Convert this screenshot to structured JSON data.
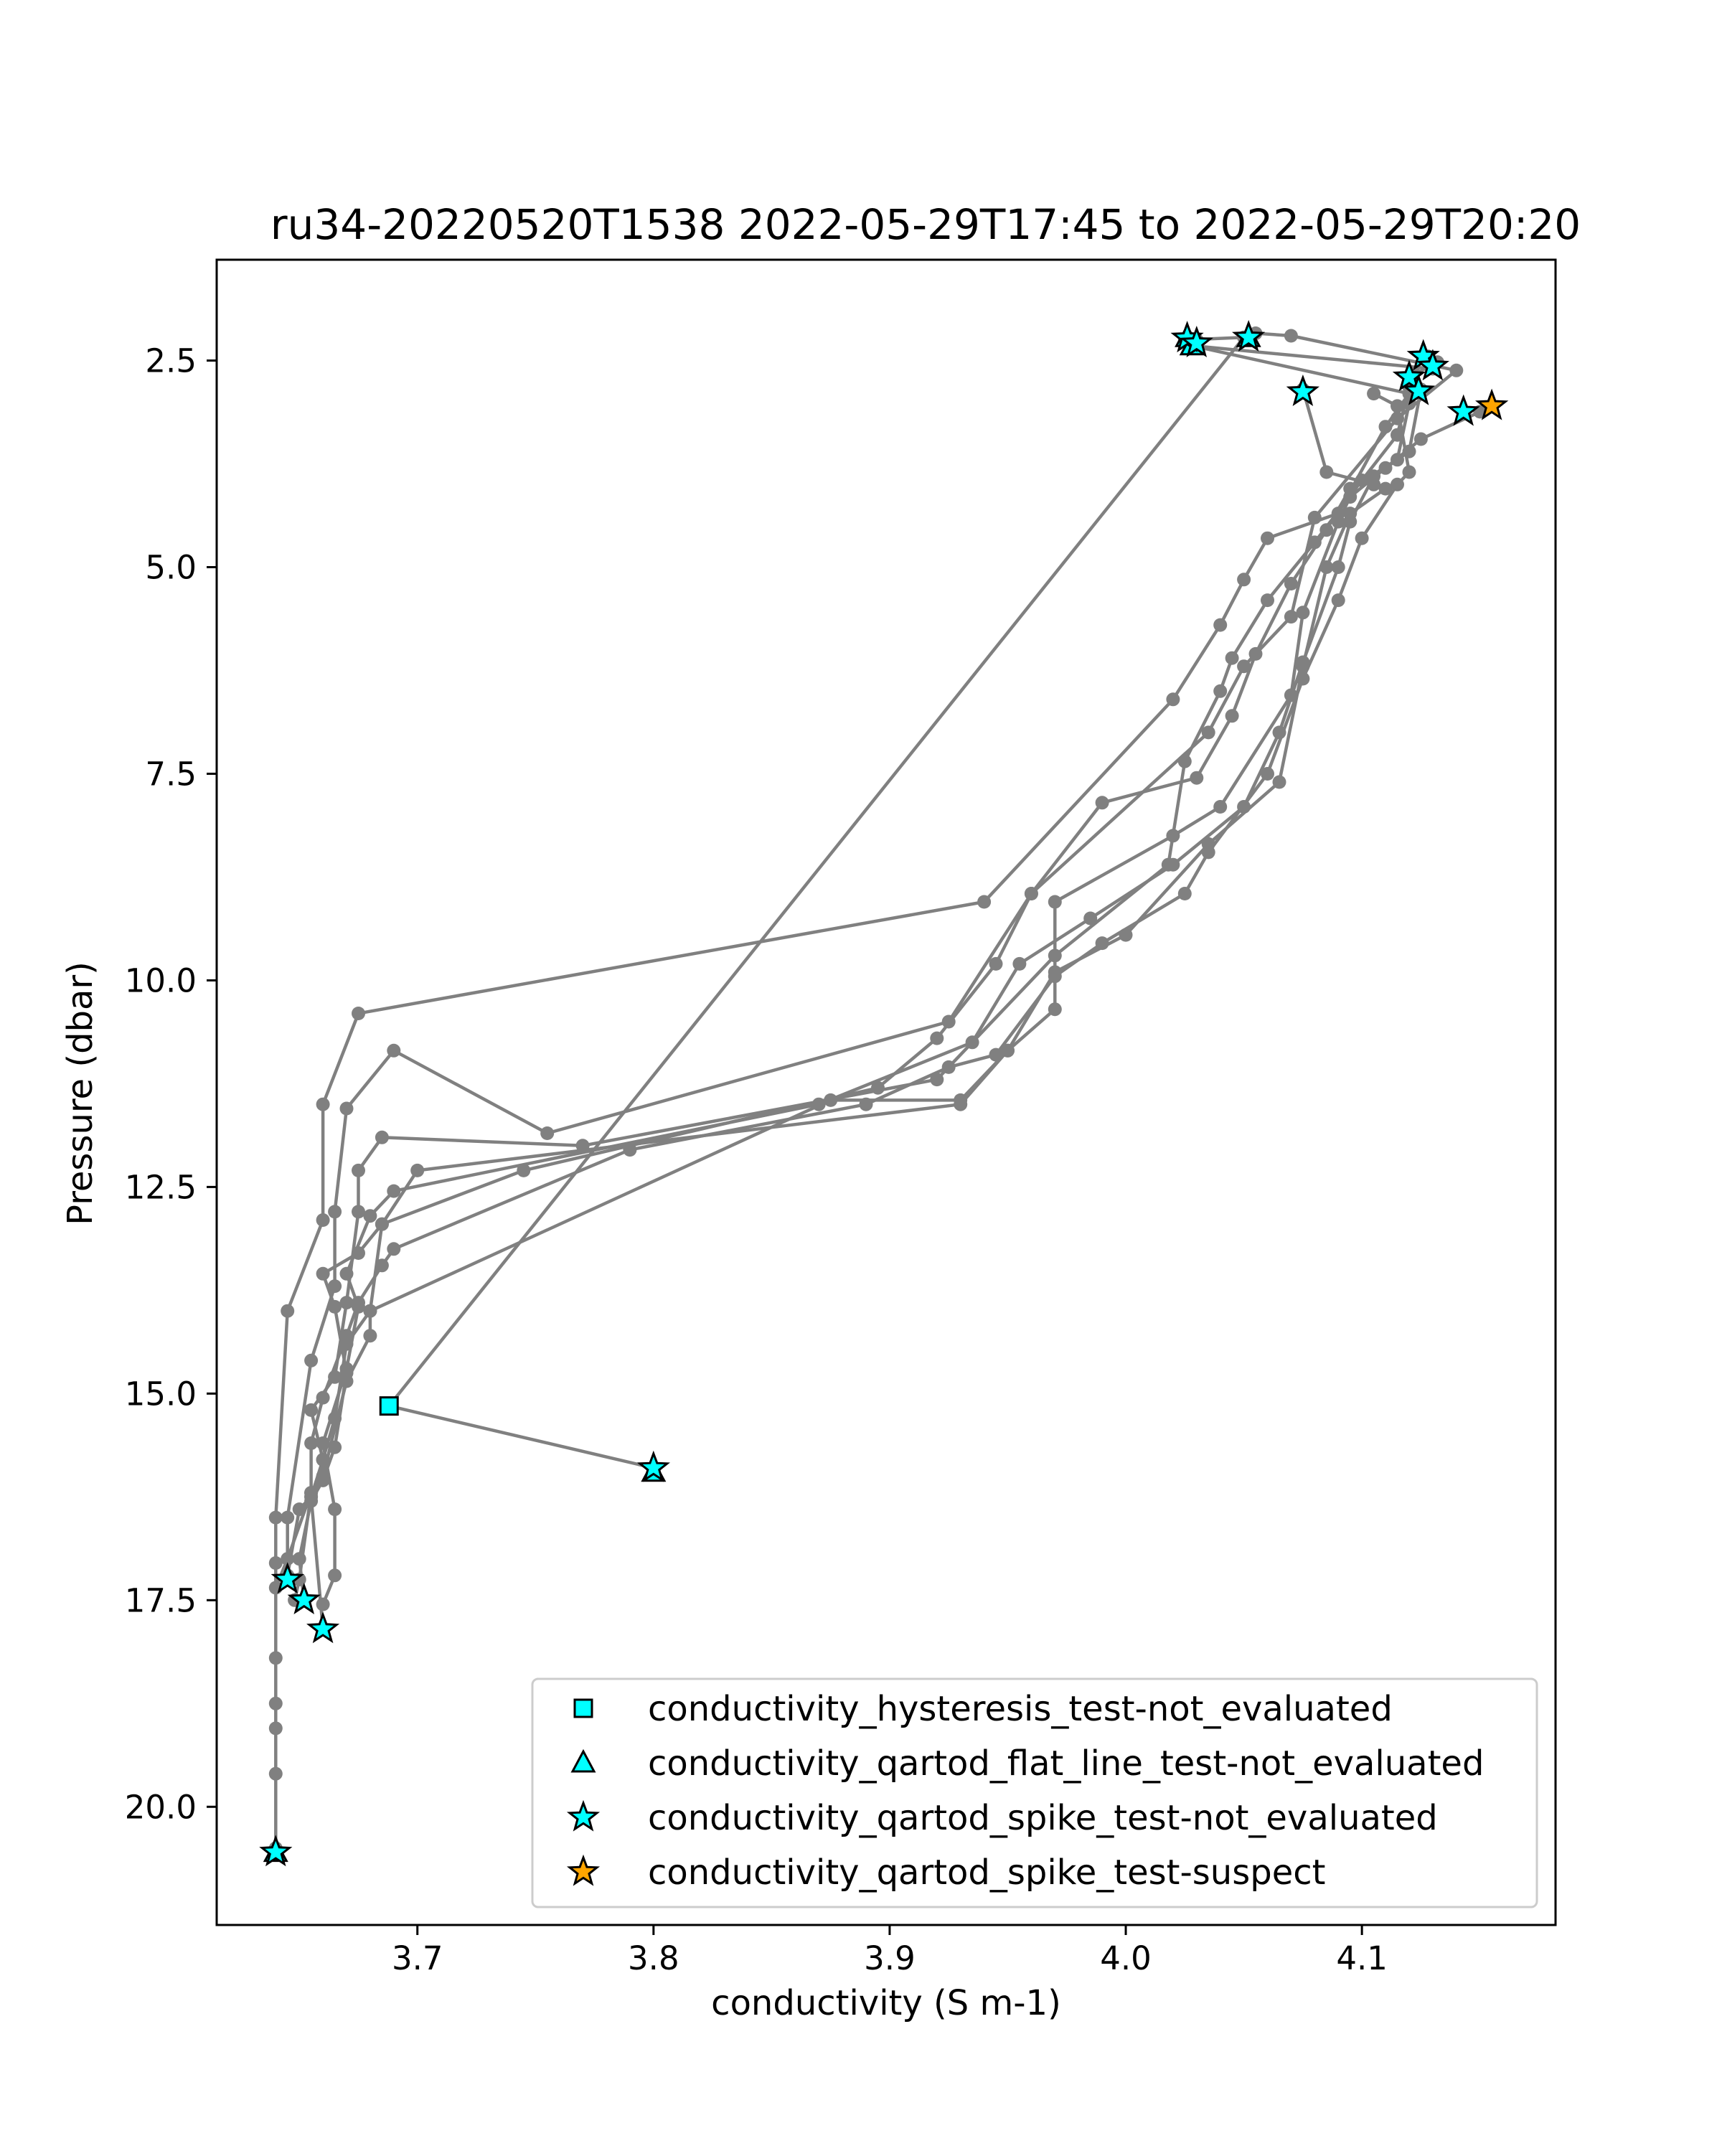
{
  "chart_data": {
    "type": "scatter",
    "title": "ru34-20220520T1538 2022-05-29T17:45 to 2022-05-29T20:20",
    "xlabel": "conductivity (S m-1)",
    "ylabel": "Pressure (dbar)",
    "xlim": [
      3.615,
      4.182
    ],
    "ylim": [
      21.43,
      1.28
    ],
    "y_inverted": true,
    "grid": false,
    "legend_position": "lower-right",
    "xticks": [
      {
        "value": 3.7,
        "label": "3.7"
      },
      {
        "value": 3.8,
        "label": "3.8"
      },
      {
        "value": 3.9,
        "label": "3.9"
      },
      {
        "value": 4.0,
        "label": "4.0"
      },
      {
        "value": 4.1,
        "label": "4.1"
      }
    ],
    "yticks": [
      {
        "value": 2.5,
        "label": "2.5"
      },
      {
        "value": 5.0,
        "label": "5.0"
      },
      {
        "value": 7.5,
        "label": "7.5"
      },
      {
        "value": 10.0,
        "label": "10.0"
      },
      {
        "value": 12.5,
        "label": "12.5"
      },
      {
        "value": 15.0,
        "label": "15.0"
      },
      {
        "value": 17.5,
        "label": "17.5"
      },
      {
        "value": 20.0,
        "label": "20.0"
      }
    ],
    "profile_line_color": "#808080",
    "profiles": [
      [
        [
          4.03,
          2.25
        ],
        [
          4.028,
          2.32
        ],
        [
          4.12,
          2.9
        ],
        [
          4.11,
          3.3
        ],
        [
          4.09,
          4.35
        ],
        [
          4.06,
          4.65
        ],
        [
          4.05,
          5.15
        ],
        [
          4.04,
          5.7
        ],
        [
          4.02,
          6.6
        ],
        [
          3.94,
          9.05
        ],
        [
          3.675,
          10.4
        ],
        [
          3.66,
          11.5
        ],
        [
          3.66,
          12.9
        ],
        [
          3.645,
          14.0
        ],
        [
          3.64,
          16.5
        ],
        [
          3.64,
          17.05
        ],
        [
          3.64,
          18.2
        ],
        [
          3.64,
          18.75
        ],
        [
          3.64,
          19.05
        ],
        [
          3.64,
          19.6
        ],
        [
          3.64,
          20.5
        ]
      ],
      [
        [
          4.055,
          2.17
        ],
        [
          4.07,
          2.2
        ],
        [
          4.14,
          2.62
        ],
        [
          4.115,
          3.2
        ],
        [
          4.08,
          4.4
        ],
        [
          4.07,
          5.6
        ],
        [
          4.05,
          6.2
        ],
        [
          4.035,
          7.0
        ],
        [
          3.96,
          8.95
        ],
        [
          3.925,
          10.5
        ],
        [
          3.755,
          11.85
        ],
        [
          3.69,
          10.85
        ],
        [
          3.67,
          11.55
        ],
        [
          3.665,
          12.8
        ],
        [
          3.665,
          13.7
        ],
        [
          3.655,
          14.6
        ],
        [
          3.645,
          16.5
        ],
        [
          3.645,
          17.25
        ]
      ],
      [
        [
          4.122,
          2.65
        ],
        [
          4.12,
          2.82
        ],
        [
          4.115,
          3.4
        ],
        [
          4.1,
          3.95
        ],
        [
          4.08,
          4.7
        ],
        [
          4.06,
          5.4
        ],
        [
          4.045,
          6.1
        ],
        [
          4.04,
          6.5
        ],
        [
          4.025,
          7.35
        ],
        [
          4.018,
          8.6
        ],
        [
          3.97,
          9.7
        ],
        [
          3.92,
          11.2
        ],
        [
          3.77,
          12.0
        ],
        [
          3.685,
          11.9
        ],
        [
          3.675,
          12.3
        ],
        [
          3.675,
          12.8
        ],
        [
          3.67,
          13.9
        ],
        [
          3.665,
          14.8
        ],
        [
          3.655,
          15.2
        ],
        [
          3.66,
          15.8
        ],
        [
          3.66,
          16.05
        ],
        [
          3.655,
          16.3
        ],
        [
          3.65,
          17.0
        ],
        [
          3.652,
          17.5
        ]
      ],
      [
        [
          4.128,
          2.45
        ],
        [
          4.132,
          2.52
        ],
        [
          4.12,
          2.7
        ],
        [
          4.12,
          3.02
        ],
        [
          4.115,
          3.7
        ],
        [
          4.095,
          4.05
        ],
        [
          4.085,
          4.55
        ],
        [
          4.07,
          5.2
        ],
        [
          4.055,
          6.05
        ],
        [
          4.045,
          6.8
        ],
        [
          4.03,
          7.55
        ],
        [
          3.99,
          7.85
        ],
        [
          3.96,
          8.95
        ],
        [
          3.945,
          9.8
        ],
        [
          3.92,
          10.7
        ],
        [
          3.895,
          11.3
        ],
        [
          3.745,
          12.3
        ],
        [
          3.685,
          12.95
        ],
        [
          3.675,
          13.3
        ],
        [
          3.66,
          13.55
        ],
        [
          3.665,
          13.95
        ],
        [
          3.67,
          14.75
        ],
        [
          3.665,
          15.65
        ],
        [
          3.66,
          16.05
        ],
        [
          3.655,
          16.25
        ],
        [
          3.66,
          17.85
        ]
      ],
      [
        [
          4.125,
          2.85
        ],
        [
          4.12,
          3.6
        ],
        [
          4.105,
          3.9
        ],
        [
          4.095,
          4.45
        ],
        [
          4.09,
          5.0
        ],
        [
          4.075,
          6.15
        ],
        [
          4.065,
          7.0
        ],
        [
          4.05,
          7.9
        ],
        [
          4.02,
          8.6
        ],
        [
          3.985,
          9.25
        ],
        [
          3.955,
          9.8
        ],
        [
          3.935,
          10.75
        ],
        [
          3.87,
          11.5
        ],
        [
          3.69,
          12.55
        ],
        [
          3.68,
          12.85
        ],
        [
          3.67,
          13.55
        ],
        [
          3.675,
          13.95
        ],
        [
          3.67,
          14.7
        ],
        [
          3.66,
          15.6
        ],
        [
          3.665,
          16.4
        ],
        [
          3.665,
          17.2
        ],
        [
          3.66,
          17.55
        ]
      ],
      [
        [
          4.075,
          2.85
        ],
        [
          4.085,
          3.85
        ],
        [
          4.105,
          4.0
        ],
        [
          4.11,
          4.05
        ],
        [
          4.095,
          4.35
        ],
        [
          4.085,
          5.0
        ],
        [
          4.075,
          6.2
        ],
        [
          4.065,
          7.6
        ],
        [
          4.035,
          8.35
        ],
        [
          4.0,
          9.45
        ],
        [
          3.97,
          9.9
        ],
        [
          3.95,
          10.85
        ],
        [
          3.93,
          11.5
        ],
        [
          3.7,
          12.3
        ],
        [
          3.685,
          12.95
        ],
        [
          3.68,
          14.0
        ],
        [
          3.67,
          14.4
        ],
        [
          3.665,
          15.3
        ],
        [
          3.66,
          15.8
        ],
        [
          3.655,
          16.25
        ],
        [
          3.65,
          16.4
        ],
        [
          3.645,
          17.2
        ]
      ],
      [
        [
          4.15,
          3.12
        ],
        [
          4.125,
          3.45
        ],
        [
          4.11,
          3.8
        ],
        [
          4.095,
          4.15
        ],
        [
          4.09,
          4.45
        ],
        [
          4.075,
          5.55
        ],
        [
          4.07,
          6.55
        ],
        [
          4.04,
          7.9
        ],
        [
          4.02,
          8.25
        ],
        [
          3.97,
          9.05
        ],
        [
          3.97,
          10.35
        ],
        [
          3.95,
          10.85
        ],
        [
          3.93,
          11.45
        ],
        [
          3.875,
          11.45
        ],
        [
          3.68,
          14.0
        ],
        [
          3.68,
          14.3
        ],
        [
          3.67,
          14.85
        ],
        [
          3.66,
          16.0
        ],
        [
          3.655,
          16.2
        ],
        [
          3.65,
          17.25
        ],
        [
          3.648,
          17.5
        ]
      ],
      [
        [
          4.105,
          2.9
        ],
        [
          4.115,
          3.05
        ],
        [
          4.12,
          3.85
        ],
        [
          4.115,
          4.0
        ],
        [
          4.1,
          4.65
        ],
        [
          4.09,
          5.4
        ],
        [
          4.075,
          6.35
        ],
        [
          4.06,
          7.5
        ],
        [
          4.035,
          8.45
        ],
        [
          4.025,
          8.95
        ],
        [
          3.99,
          9.55
        ],
        [
          3.97,
          9.95
        ],
        [
          3.945,
          10.9
        ],
        [
          3.925,
          11.05
        ],
        [
          3.89,
          11.5
        ],
        [
          3.79,
          12.05
        ],
        [
          3.69,
          13.25
        ],
        [
          3.685,
          13.45
        ],
        [
          3.675,
          13.9
        ],
        [
          3.67,
          14.3
        ],
        [
          3.66,
          15.05
        ],
        [
          3.655,
          15.6
        ],
        [
          3.655,
          16.2
        ],
        [
          3.645,
          17.0
        ],
        [
          3.64,
          17.35
        ]
      ],
      [
        [
          3.8,
          15.9
        ],
        [
          3.688,
          15.15
        ],
        [
          4.05,
          2.22
        ],
        [
          4.025,
          2.25
        ],
        [
          4.028,
          2.32
        ],
        [
          4.13,
          2.6
        ]
      ]
    ],
    "series": [
      {
        "name": "conductivity_hysteresis_test-not_evaluated",
        "marker": "square",
        "color": "#00ffff",
        "points": [
          [
            3.688,
            15.15
          ]
        ]
      },
      {
        "name": "conductivity_qartod_flat_line_test-not_evaluated",
        "marker": "triangle",
        "color": "#00ffff",
        "points": [
          [
            4.026,
            2.22
          ],
          [
            4.028,
            2.32
          ],
          [
            4.052,
            2.22
          ],
          [
            3.64,
            20.55
          ],
          [
            3.8,
            15.95
          ]
        ]
      },
      {
        "name": "conductivity_qartod_spike_test-not_evaluated",
        "marker": "star",
        "color": "#00ffff",
        "points": [
          [
            4.026,
            2.23
          ],
          [
            4.03,
            2.29
          ],
          [
            4.052,
            2.22
          ],
          [
            4.075,
            2.88
          ],
          [
            4.126,
            2.45
          ],
          [
            4.13,
            2.57
          ],
          [
            4.12,
            2.7
          ],
          [
            4.124,
            2.87
          ],
          [
            4.143,
            3.12
          ],
          [
            3.8,
            15.9
          ],
          [
            3.645,
            17.25
          ],
          [
            3.652,
            17.5
          ],
          [
            3.66,
            17.85
          ],
          [
            3.64,
            20.55
          ]
        ]
      },
      {
        "name": "conductivity_qartod_spike_test-suspect",
        "marker": "star",
        "color": "#ffa500",
        "points": [
          [
            4.155,
            3.05
          ]
        ]
      }
    ]
  }
}
